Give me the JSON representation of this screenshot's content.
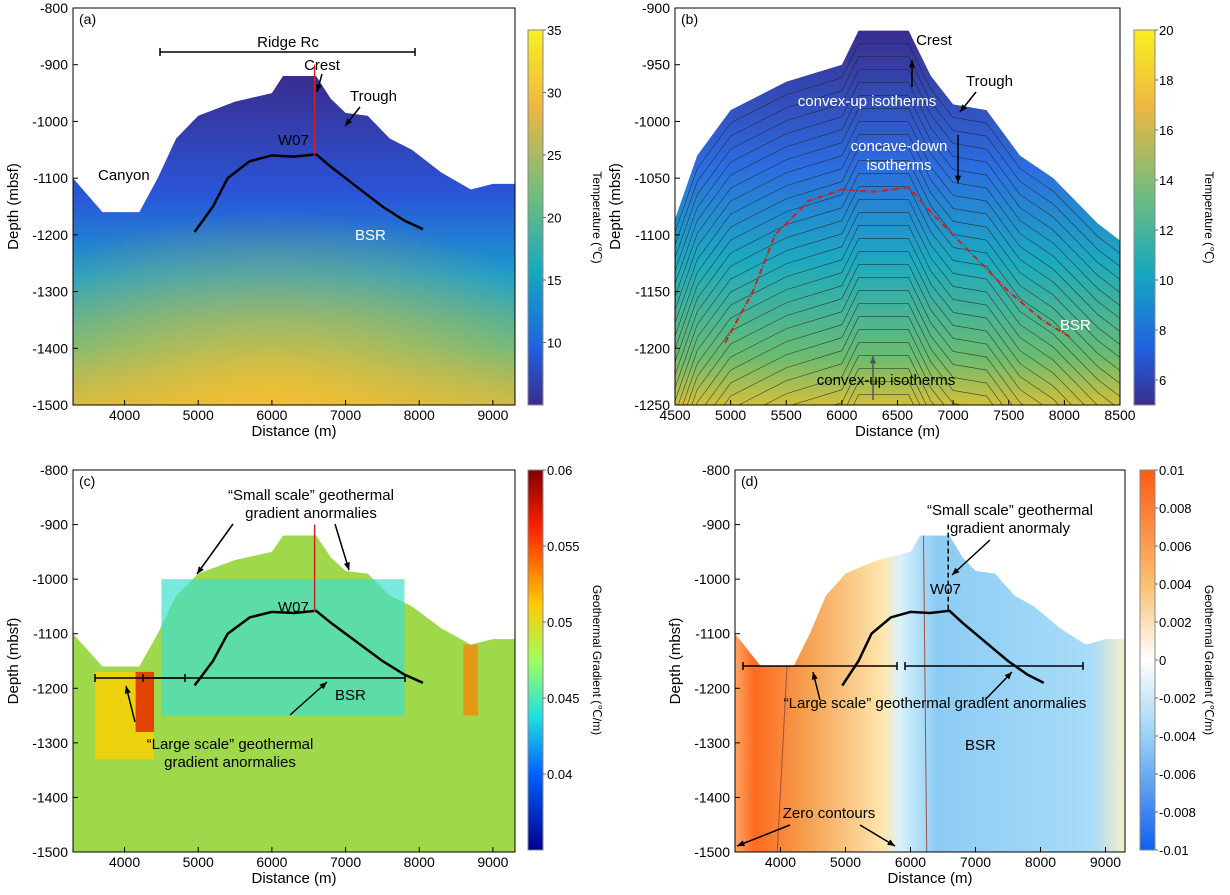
{
  "chart_data": [
    {
      "panel_label": "(a)",
      "type": "heatmap",
      "xlabel": "Distance (m)",
      "ylabel": "Depth (mbsf)",
      "xlim": [
        3300,
        9300
      ],
      "ylim": [
        -1500,
        -800
      ],
      "xticks": [
        4000,
        5000,
        6000,
        7000,
        8000,
        9000
      ],
      "yticks": [
        -800,
        -900,
        -1000,
        -1100,
        -1200,
        -1300,
        -1400,
        -1500
      ],
      "colorbar": {
        "label": "Temperature (℃)",
        "range": [
          5,
          35
        ],
        "ticks": [
          10,
          15,
          20,
          25,
          30,
          35
        ],
        "colormap": "parula"
      },
      "annotations": {
        "ridge": "Ridge Rc",
        "crest": "Crest",
        "trough": "Trough",
        "canyon": "Canyon",
        "well": "W07",
        "bsr": "BSR"
      }
    },
    {
      "panel_label": "(b)",
      "type": "heatmap",
      "xlabel": "Distance (m)",
      "ylabel": "Depth (mbsf)",
      "xlim": [
        4500,
        8500
      ],
      "ylim": [
        -1250,
        -900
      ],
      "xticks": [
        4500,
        5000,
        5500,
        6000,
        6500,
        7000,
        7500,
        8000,
        8500
      ],
      "yticks": [
        -900,
        -950,
        -1000,
        -1050,
        -1100,
        -1150,
        -1200,
        -1250
      ],
      "colorbar": {
        "label": "Temperature (℃)",
        "range": [
          5,
          20
        ],
        "ticks": [
          6,
          8,
          10,
          12,
          14,
          16,
          18,
          20
        ],
        "colormap": "parula"
      },
      "annotations": {
        "crest": "Crest",
        "trough": "Trough",
        "convex_top": "convex-up isotherms",
        "concave_1": "concave-down",
        "concave_2": "isotherms",
        "bsr": "BSR",
        "convex_bottom": "convex-up isotherms"
      }
    },
    {
      "panel_label": "(c)",
      "type": "heatmap",
      "xlabel": "Distance (m)",
      "ylabel": "Depth (mbsf)",
      "xlim": [
        3300,
        9300
      ],
      "ylim": [
        -1500,
        -800
      ],
      "xticks": [
        4000,
        5000,
        6000,
        7000,
        8000,
        9000
      ],
      "yticks": [
        -800,
        -900,
        -1000,
        -1100,
        -1200,
        -1300,
        -1400,
        -1500
      ],
      "colorbar": {
        "label": "Geothermal Gradient (℃/m)",
        "range": [
          0.035,
          0.06
        ],
        "ticks": [
          0.04,
          0.045,
          0.05,
          0.055,
          0.06
        ],
        "colormap": "jet"
      },
      "annotations": {
        "small_1": "“Small scale” geothermal",
        "small_2": "gradient anormalies",
        "well": "W07",
        "bsr": "BSR",
        "large_1": "“Large scale” geothermal",
        "large_2": "gradient anormalies"
      }
    },
    {
      "panel_label": "(d)",
      "type": "heatmap",
      "xlabel": "Distance (m)",
      "ylabel": "Depth (mbsf)",
      "xlim": [
        3300,
        9300
      ],
      "ylim": [
        -1500,
        -800
      ],
      "xticks": [
        4000,
        5000,
        6000,
        7000,
        8000,
        9000
      ],
      "yticks": [
        -800,
        -900,
        -1000,
        -1100,
        -1200,
        -1300,
        -1400,
        -1500
      ],
      "colorbar": {
        "label": "Geothermal Gradient (℃/m)",
        "range": [
          -0.01,
          0.01
        ],
        "ticks": [
          -0.01,
          -0.008,
          -0.006,
          -0.004,
          -0.002,
          0,
          0.002,
          0.004,
          0.006,
          0.008,
          0.01
        ],
        "colormap": "blue-white-orange"
      },
      "annotations": {
        "small_1": "“Small scale” geothermal",
        "small_2": "gradient anormaly",
        "well": "W07",
        "bsr": "BSR",
        "large": "“Large scale” geothermal gradient anormalies",
        "zero": "Zero contours"
      }
    }
  ],
  "seafloor": [
    [
      3300,
      -1100
    ],
    [
      3700,
      -1160
    ],
    [
      4200,
      -1160
    ],
    [
      4450,
      -1100
    ],
    [
      4700,
      -1030
    ],
    [
      5000,
      -990
    ],
    [
      5500,
      -965
    ],
    [
      6000,
      -950
    ],
    [
      6150,
      -920
    ],
    [
      6600,
      -920
    ],
    [
      6800,
      -960
    ],
    [
      7000,
      -985
    ],
    [
      7300,
      -990
    ],
    [
      7600,
      -1030
    ],
    [
      7900,
      -1050
    ],
    [
      8300,
      -1090
    ],
    [
      8700,
      -1120
    ],
    [
      9000,
      -1110
    ],
    [
      9300,
      -1110
    ]
  ],
  "bsr": [
    [
      4950,
      -1195
    ],
    [
      5200,
      -1150
    ],
    [
      5400,
      -1100
    ],
    [
      5700,
      -1070
    ],
    [
      6000,
      -1060
    ],
    [
      6300,
      -1062
    ],
    [
      6600,
      -1058
    ],
    [
      6800,
      -1080
    ],
    [
      7100,
      -1110
    ],
    [
      7500,
      -1150
    ],
    [
      7800,
      -1175
    ],
    [
      8050,
      -1190
    ]
  ],
  "well_x": 6580
}
